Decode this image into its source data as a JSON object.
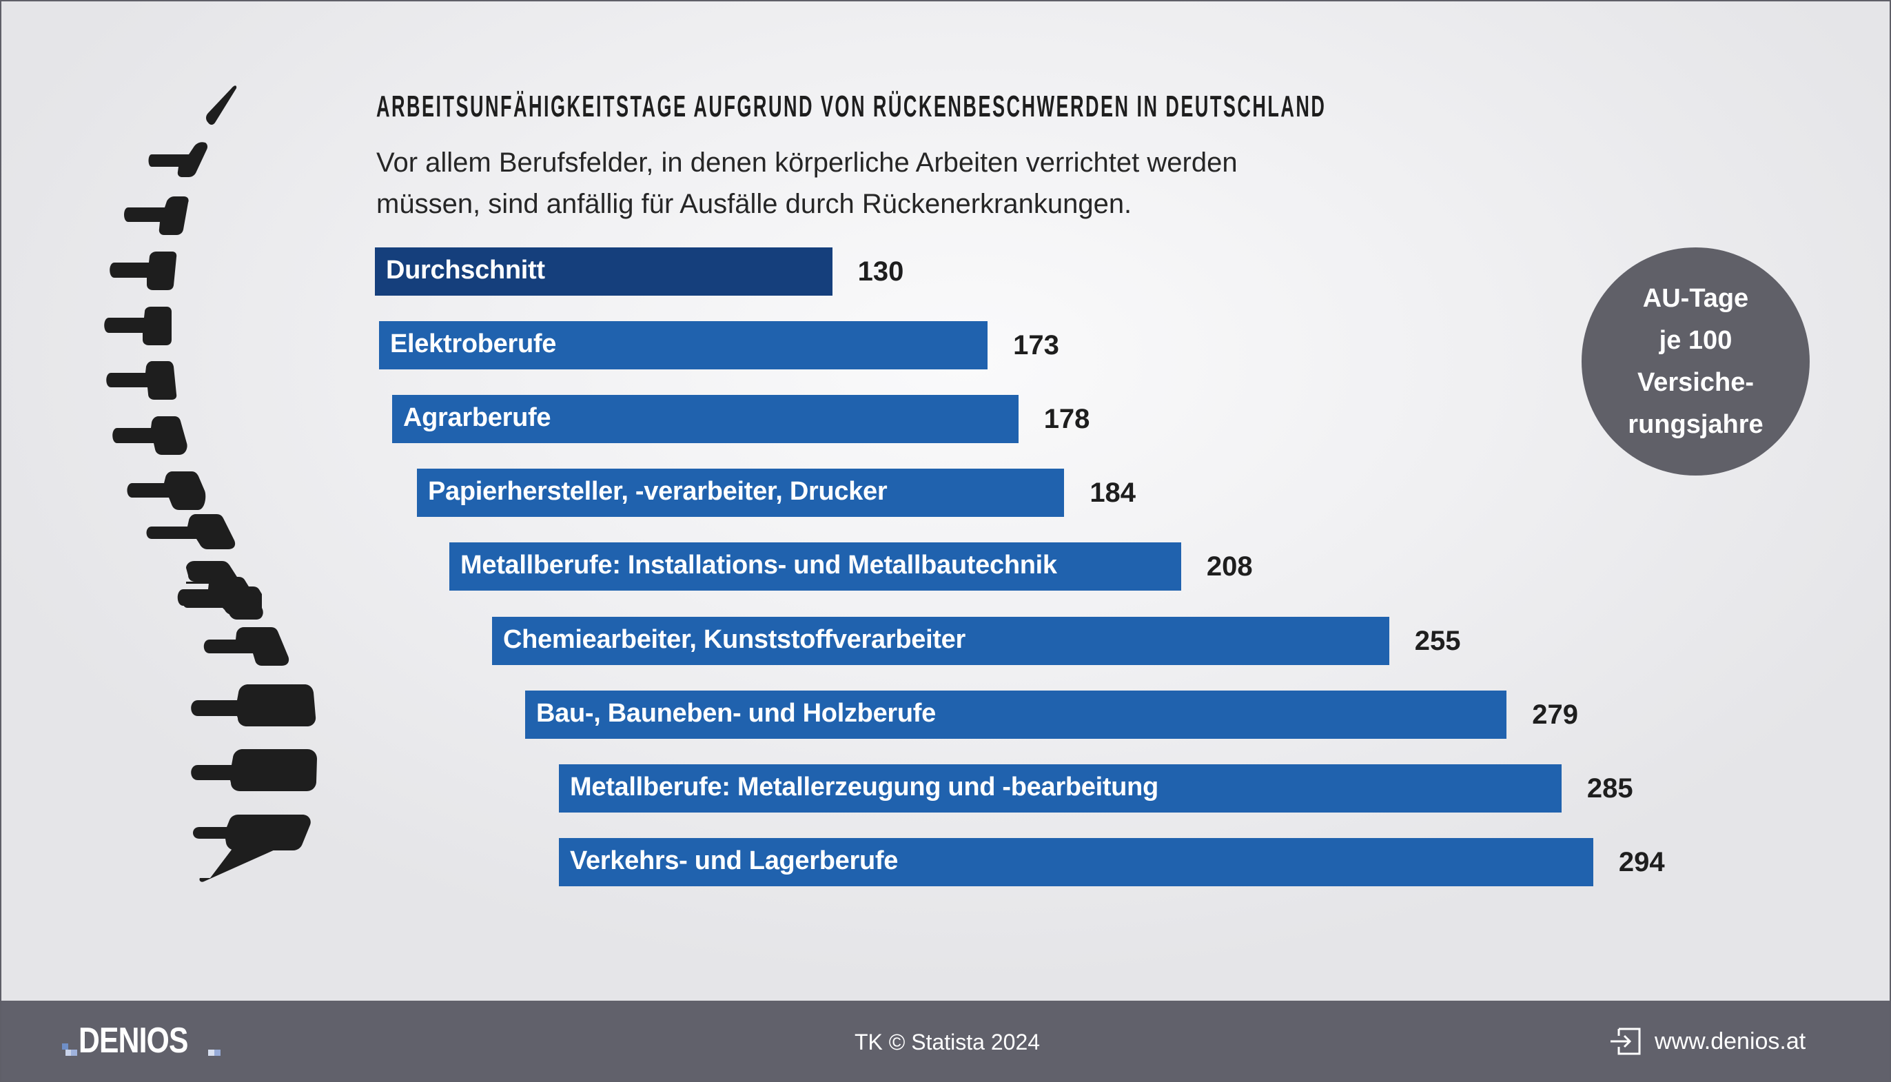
{
  "colors": {
    "average_bar": "#153f7c",
    "bar": "#2062ae",
    "badge": "#606068",
    "footer": "#61616b",
    "spine": "#1e1e1e"
  },
  "chart_data": {
    "type": "bar",
    "orientation": "horizontal",
    "title": "ARBEITSUNFÄHIGKEITSTAGE AUFGRUND VON RÜCKENBESCHWERDEN IN DEUTSCHLAND",
    "subtitle_lines": [
      "Vor allem Berufsfelder, in denen körperliche Arbeiten verrichtet werden",
      "müssen, sind anfällig für Ausfälle durch Rückenerkrankungen."
    ],
    "unit_badge": [
      "AU-Tage",
      "je 100",
      "Versiche-",
      "rungsjahre"
    ],
    "xlabel": "",
    "ylabel": "",
    "xlim": [
      0,
      300
    ],
    "grid": false,
    "categories": [
      "Durchschnitt",
      "Elektroberufe",
      "Agrarberufe",
      "Papierhersteller, -verarbeiter, Drucker",
      "Metallberufe: Installations- und Metallbautechnik",
      "Chemiearbeiter, Kunststoffverarbeiter",
      "Bau-, Bauneben- und Holzberufe",
      "Metallberufe: Metallerzeugung und -bearbeitung",
      "Verkehrs- und Lagerberufe"
    ],
    "values": [
      130,
      173,
      178,
      184,
      208,
      255,
      279,
      285,
      294
    ],
    "highlight": "Durchschnitt"
  },
  "footer": {
    "logo": "DENIOS",
    "source": "TK © Statista 2024",
    "website": "www.denios.at",
    "website_icon": "external-link-icon"
  }
}
